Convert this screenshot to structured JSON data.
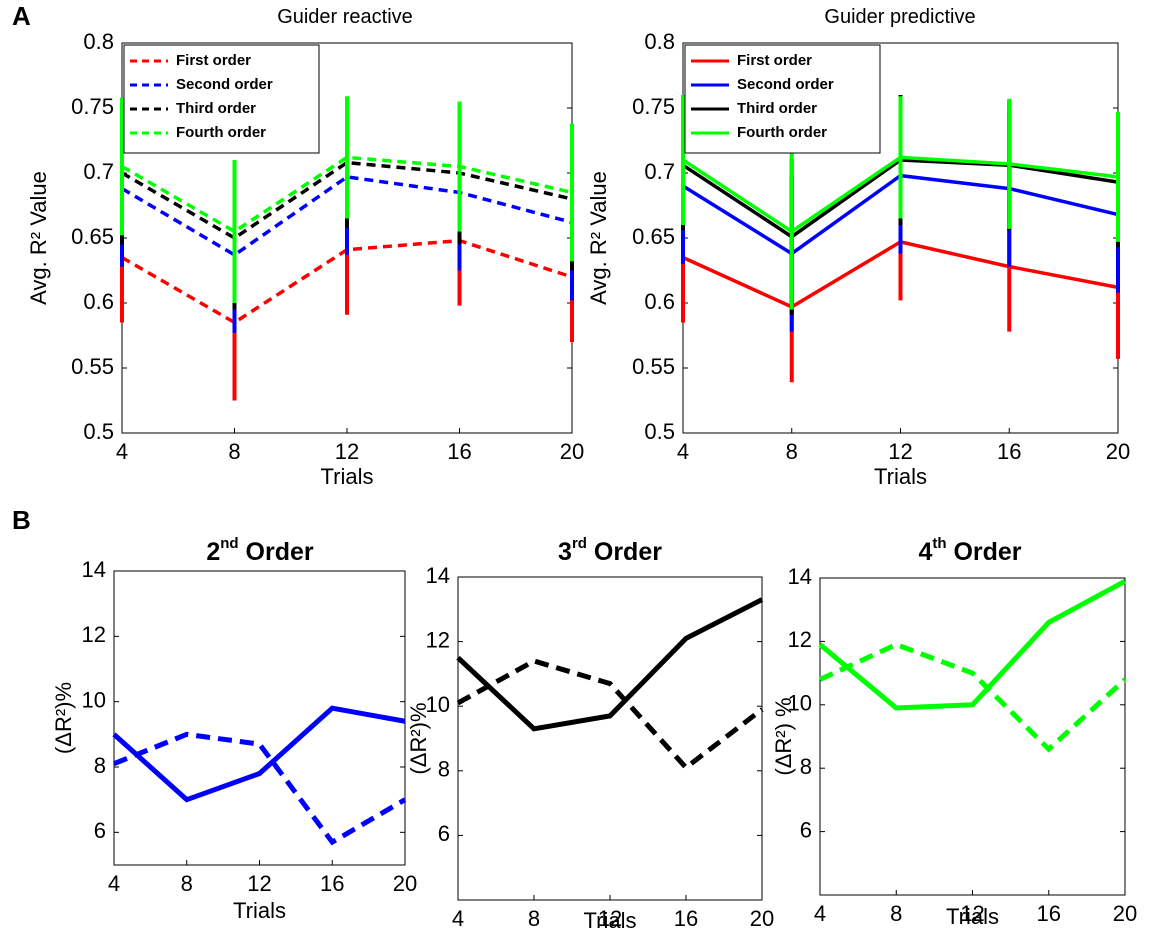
{
  "panel_labels": [
    "A",
    "B"
  ],
  "chart_data": [
    {
      "type": "line",
      "title": [
        {
          "text": "Guider reactive"
        }
      ],
      "xlabel": "Trials",
      "ylabel": "Avg. R² Value",
      "x": [
        4,
        8,
        12,
        16,
        20
      ],
      "xlim": [
        4,
        20
      ],
      "xticks": [
        4,
        8,
        12,
        16,
        20
      ],
      "ylim": [
        0.5,
        0.8
      ],
      "yticks": [
        0.5,
        0.55,
        0.6,
        0.65,
        0.7,
        0.75,
        0.8
      ],
      "linestyle": "dashed",
      "legend": "upper left",
      "series": [
        {
          "name": "First order",
          "color": "#ff0000",
          "values": [
            0.635,
            0.585,
            0.641,
            0.648,
            0.62
          ],
          "errors": [
            0.05,
            0.06,
            0.05,
            0.05,
            0.05
          ]
        },
        {
          "name": "Second order",
          "color": "#0000ff",
          "values": [
            0.688,
            0.637,
            0.697,
            0.685,
            0.662
          ],
          "errors": [
            0.06,
            0.06,
            0.06,
            0.06,
            0.06
          ]
        },
        {
          "name": "Third order",
          "color": "#000000",
          "values": [
            0.7,
            0.65,
            0.708,
            0.7,
            0.68
          ],
          "errors": [
            0.055,
            0.055,
            0.05,
            0.055,
            0.055
          ]
        },
        {
          "name": "Fourth order",
          "color": "#00ff00",
          "values": [
            0.705,
            0.655,
            0.712,
            0.705,
            0.685
          ],
          "errors": [
            0.053,
            0.055,
            0.047,
            0.05,
            0.053
          ]
        }
      ]
    },
    {
      "type": "line",
      "title": [
        {
          "text": "Guider predictive"
        }
      ],
      "xlabel": "Trials",
      "ylabel": "Avg. R² Value",
      "x": [
        4,
        8,
        12,
        16,
        20
      ],
      "xlim": [
        4,
        20
      ],
      "xticks": [
        4,
        8,
        12,
        16,
        20
      ],
      "ylim": [
        0.5,
        0.8
      ],
      "yticks": [
        0.5,
        0.55,
        0.6,
        0.65,
        0.7,
        0.75,
        0.8
      ],
      "linestyle": "solid",
      "legend": "upper left",
      "series": [
        {
          "name": "First order",
          "color": "#ff0000",
          "values": [
            0.635,
            0.597,
            0.647,
            0.628,
            0.612
          ],
          "errors": [
            0.05,
            0.058,
            0.045,
            0.05,
            0.055
          ]
        },
        {
          "name": "Second order",
          "color": "#0000ff",
          "values": [
            0.69,
            0.638,
            0.698,
            0.688,
            0.668
          ],
          "errors": [
            0.06,
            0.06,
            0.06,
            0.06,
            0.06
          ]
        },
        {
          "name": "Third order",
          "color": "#000000",
          "values": [
            0.706,
            0.651,
            0.71,
            0.706,
            0.693
          ],
          "errors": [
            0.05,
            0.06,
            0.05,
            0.05,
            0.05
          ]
        },
        {
          "name": "Fourth order",
          "color": "#00ff00",
          "values": [
            0.71,
            0.655,
            0.712,
            0.707,
            0.697
          ],
          "errors": [
            0.05,
            0.06,
            0.047,
            0.05,
            0.05
          ]
        }
      ]
    },
    {
      "type": "line",
      "title": [
        {
          "text": "2"
        },
        {
          "text": "nd",
          "sup": true
        },
        {
          "text": " Order"
        }
      ],
      "xlabel": "Trials",
      "ylabel": "(ΔR²)%",
      "x": [
        4,
        8,
        12,
        16,
        20
      ],
      "xlim": [
        4,
        20
      ],
      "xticks": [
        4,
        8,
        12,
        16,
        20
      ],
      "ylim": [
        5,
        14
      ],
      "yticks": [
        6,
        8,
        10,
        12,
        14
      ],
      "series": [
        {
          "color": "#0000ff",
          "dashed": false,
          "values": [
            9.0,
            7.0,
            7.8,
            9.8,
            9.4
          ]
        },
        {
          "color": "#0000ff",
          "dashed": true,
          "values": [
            8.1,
            9.0,
            8.7,
            5.7,
            7.0
          ]
        }
      ]
    },
    {
      "type": "line",
      "title": [
        {
          "text": "3"
        },
        {
          "text": "rd",
          "sup": true
        },
        {
          "text": " Order"
        }
      ],
      "xlabel": "Trials",
      "ylabel": "(ΔR²)%",
      "x": [
        4,
        8,
        12,
        16,
        20
      ],
      "xlim": [
        4,
        20
      ],
      "xticks": [
        4,
        8,
        12,
        16,
        20
      ],
      "ylim": [
        4,
        14
      ],
      "yticks": [
        6,
        8,
        10,
        12,
        14
      ],
      "series": [
        {
          "color": "#000000",
          "dashed": false,
          "values": [
            11.5,
            9.3,
            9.7,
            12.1,
            13.3
          ]
        },
        {
          "color": "#000000",
          "dashed": true,
          "values": [
            10.1,
            11.4,
            10.7,
            8.1,
            9.9
          ]
        }
      ]
    },
    {
      "type": "line",
      "title": [
        {
          "text": "4"
        },
        {
          "text": "th",
          "sup": true
        },
        {
          "text": " Order"
        }
      ],
      "xlabel": "Trials",
      "ylabel": "(ΔR²) %",
      "x": [
        4,
        8,
        12,
        16,
        20
      ],
      "xlim": [
        4,
        20
      ],
      "xticks": [
        4,
        8,
        12,
        16,
        20
      ],
      "ylim": [
        4,
        14
      ],
      "yticks": [
        6,
        8,
        10,
        12,
        14
      ],
      "series": [
        {
          "color": "#00ff00",
          "dashed": false,
          "values": [
            11.9,
            9.9,
            10.0,
            12.6,
            13.9
          ]
        },
        {
          "color": "#00ff00",
          "dashed": true,
          "values": [
            10.8,
            11.9,
            11.0,
            8.6,
            10.8
          ]
        }
      ]
    }
  ]
}
